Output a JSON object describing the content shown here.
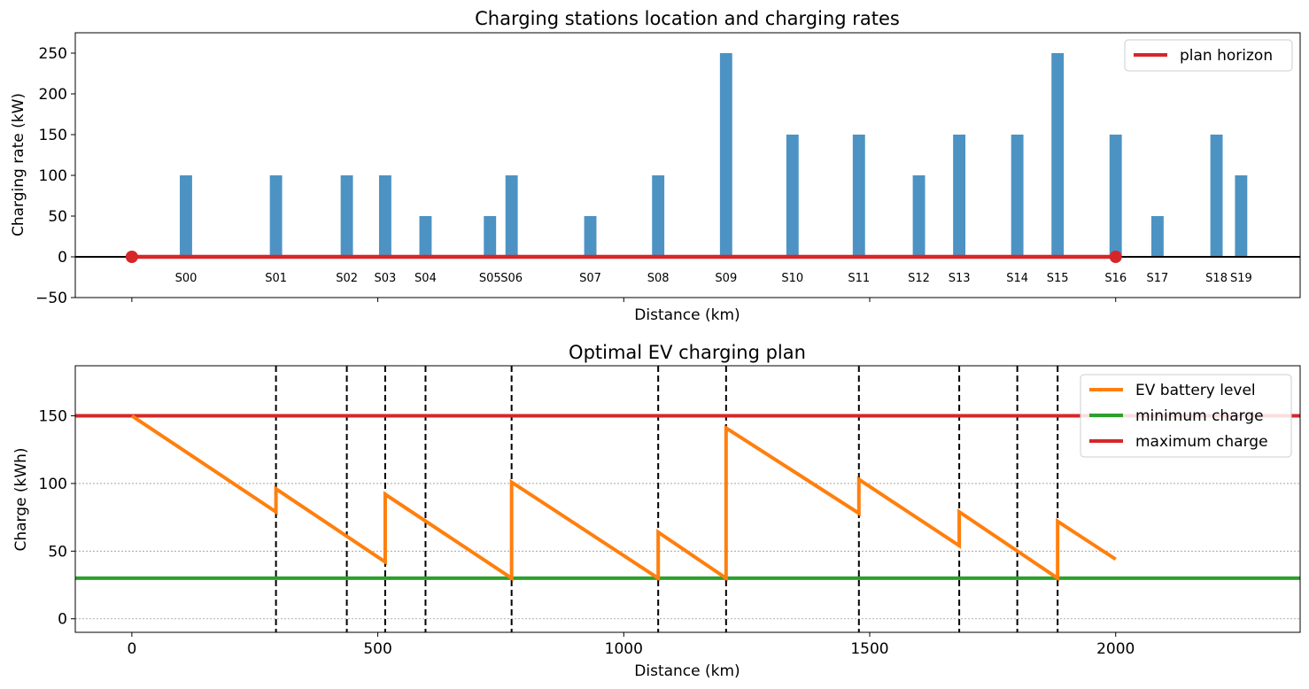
{
  "chart_data": [
    {
      "type": "bar",
      "title": "Charging stations location and charging rates",
      "xlabel": "Distance (km)",
      "ylabel": "Charging rate (kW)",
      "xlim": [
        -115,
        2375
      ],
      "ylim": [
        -50,
        275
      ],
      "yticks": [
        -50,
        0,
        50,
        100,
        150,
        200,
        250
      ],
      "ytick_labels": [
        "−50",
        "0",
        "50",
        "100",
        "150",
        "200",
        "250"
      ],
      "xticks_minor_marks": [
        0,
        500,
        1000,
        1500,
        2000
      ],
      "grid": false,
      "bar_width_km": 25,
      "stations": [
        {
          "name": "S00",
          "x": 110,
          "rate": 100
        },
        {
          "name": "S01",
          "x": 293,
          "rate": 100
        },
        {
          "name": "S02",
          "x": 437,
          "rate": 100
        },
        {
          "name": "S03",
          "x": 515,
          "rate": 100
        },
        {
          "name": "S04",
          "x": 597,
          "rate": 50
        },
        {
          "name": "S05",
          "x": 728,
          "rate": 50
        },
        {
          "name": "S06",
          "x": 772,
          "rate": 100
        },
        {
          "name": "S07",
          "x": 932,
          "rate": 50
        },
        {
          "name": "S08",
          "x": 1070,
          "rate": 100
        },
        {
          "name": "S09",
          "x": 1208,
          "rate": 250
        },
        {
          "name": "S10",
          "x": 1343,
          "rate": 150
        },
        {
          "name": "S11",
          "x": 1478,
          "rate": 150
        },
        {
          "name": "S12",
          "x": 1600,
          "rate": 100
        },
        {
          "name": "S13",
          "x": 1682,
          "rate": 150
        },
        {
          "name": "S14",
          "x": 1800,
          "rate": 150
        },
        {
          "name": "S15",
          "x": 1882,
          "rate": 250
        },
        {
          "name": "S16",
          "x": 2000,
          "rate": 150
        },
        {
          "name": "S17",
          "x": 2085,
          "rate": 50
        },
        {
          "name": "S18",
          "x": 2205,
          "rate": 150
        },
        {
          "name": "S19",
          "x": 2255,
          "rate": 100
        }
      ],
      "plan_horizon": {
        "start": 0,
        "end": 2000
      },
      "legend": {
        "position": "upper right",
        "entries": [
          {
            "label": "plan horizon",
            "color": "#d62728"
          }
        ]
      },
      "colors": {
        "bar": "#4c93c3",
        "horizon": "#d62728",
        "zero_line": "#000000"
      }
    },
    {
      "type": "line",
      "title": "Optimal EV charging plan",
      "xlabel": "Distance (km)",
      "ylabel": "Charge (kWh)",
      "xlim": [
        -115,
        2375
      ],
      "ylim": [
        -10,
        187
      ],
      "xticks": [
        0,
        500,
        1000,
        1500,
        2000
      ],
      "yticks": [
        0,
        50,
        100,
        150
      ],
      "grid": "horizontal dotted",
      "series": [
        {
          "name": "EV battery level",
          "color": "#ff7f0e",
          "x": [
            0,
            293,
            293,
            515,
            515,
            772,
            772,
            1070,
            1070,
            1208,
            1208,
            1478,
            1478,
            1682,
            1682,
            1882,
            1882,
            2000
          ],
          "y": [
            150,
            79,
            96,
            42,
            92,
            30,
            101,
            30,
            64,
            30,
            141,
            78,
            103,
            54,
            79,
            30,
            72,
            44
          ]
        },
        {
          "name": "minimum charge",
          "color": "#2ca02c",
          "value": 30
        },
        {
          "name": "maximum charge",
          "color": "#d62728",
          "value": 150
        }
      ],
      "charging_stops_dashed": [
        293,
        437,
        515,
        597,
        772,
        1070,
        1208,
        1478,
        1682,
        1800,
        1882
      ],
      "legend": {
        "position": "upper right"
      }
    }
  ]
}
